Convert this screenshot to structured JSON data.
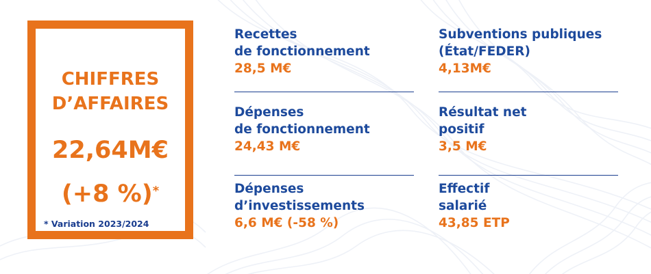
{
  "highlight": {
    "title_line1": "CHIFFRES",
    "title_line2": "D’AFFAIRES",
    "value": "22,64M€",
    "variation": "(+8 %)",
    "variation_marker": "*",
    "footnote": "* Variation 2023/2024"
  },
  "left_column": [
    {
      "label_line1": "Recettes",
      "label_line2": "de fonctionnement",
      "value": "28,5 M€"
    },
    {
      "label_line1": "Dépenses",
      "label_line2": "de fonctionnement",
      "value": "24,43 M€"
    },
    {
      "label_line1": "Dépenses",
      "label_line2": "d’investissements",
      "value": "6,6 M€ (-58 %)"
    }
  ],
  "right_column": [
    {
      "label_line1": "Subventions publiques",
      "label_line2": "(État/FEDER)",
      "value": "4,13M€"
    },
    {
      "label_line1": "Résultat net",
      "label_line2": "positif",
      "value": "3,5 M€"
    },
    {
      "label_line1": "Effectif",
      "label_line2": "salarié",
      "value": "43,85 ETP"
    }
  ],
  "colors": {
    "accent_orange": "#e8731c",
    "label_blue": "#1d4a9c",
    "background_lines": "#eef1f7"
  }
}
